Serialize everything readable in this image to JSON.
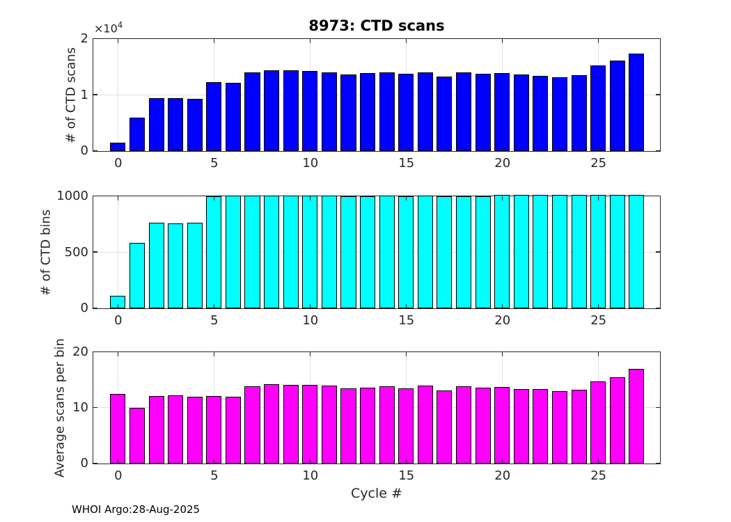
{
  "figure": {
    "title": "8973: CTD scans",
    "xlabel": "Cycle #",
    "footer": "WHOI Argo:28-Aug-2025",
    "background_color": "#ffffff",
    "axis_color": "#262626",
    "grid_color": "#e0e0e0",
    "bar_edge_color": "#000000"
  },
  "chart_data": [
    {
      "type": "bar",
      "name": "ctd-scans",
      "ylabel": "# of CTD scans",
      "y_exponent_base": "×10",
      "y_exponent_power": "4",
      "bar_color": "#0000ff",
      "x": [
        0,
        1,
        2,
        3,
        4,
        5,
        6,
        7,
        8,
        9,
        10,
        11,
        12,
        13,
        14,
        15,
        16,
        17,
        18,
        19,
        20,
        21,
        22,
        23,
        24,
        25,
        26,
        27
      ],
      "values": [
        1400,
        5900,
        9400,
        9400,
        9300,
        12300,
        12100,
        14000,
        14400,
        14300,
        14200,
        14000,
        13600,
        13800,
        14000,
        13700,
        14000,
        13200,
        14000,
        13700,
        13900,
        13600,
        13400,
        13100,
        13500,
        15200,
        16100,
        17300
      ],
      "xlim": [
        -1.3,
        28.2
      ],
      "ylim": [
        0,
        20000
      ],
      "xticks": [
        0,
        5,
        10,
        15,
        20,
        25
      ],
      "xtick_labels": [
        "0",
        "5",
        "10",
        "15",
        "20",
        "25"
      ],
      "yticks": [
        0,
        10000,
        20000
      ],
      "ytick_labels": [
        "0",
        "1",
        "2"
      ],
      "grid": true
    },
    {
      "type": "bar",
      "name": "ctd-bins",
      "ylabel": "# of CTD bins",
      "bar_color": "#00ffff",
      "x": [
        0,
        1,
        2,
        3,
        4,
        5,
        6,
        7,
        8,
        9,
        10,
        11,
        12,
        13,
        14,
        15,
        16,
        17,
        18,
        19,
        20,
        21,
        22,
        23,
        24,
        25,
        26,
        27
      ],
      "values": [
        110,
        580,
        760,
        755,
        760,
        998,
        1005,
        1002,
        1002,
        1006,
        1006,
        1002,
        1000,
        1000,
        1002,
        1000,
        1002,
        1000,
        1000,
        1000,
        1008,
        1008,
        1008,
        1008,
        1008,
        1008,
        1010,
        1010
      ],
      "xlim": [
        -1.3,
        28.2
      ],
      "ylim": [
        0,
        1000
      ],
      "xticks": [
        0,
        5,
        10,
        15,
        20,
        25
      ],
      "xtick_labels": [
        "0",
        "5",
        "10",
        "15",
        "20",
        "25"
      ],
      "yticks": [
        0,
        500,
        1000
      ],
      "ytick_labels": [
        "0",
        "500",
        "1000"
      ],
      "grid": true
    },
    {
      "type": "bar",
      "name": "avg-scans-per-bin",
      "ylabel": "Average scans per bin",
      "bar_color": "#ff00ff",
      "x": [
        0,
        1,
        2,
        3,
        4,
        5,
        6,
        7,
        8,
        9,
        10,
        11,
        12,
        13,
        14,
        15,
        16,
        17,
        18,
        19,
        20,
        21,
        22,
        23,
        24,
        25,
        26,
        27
      ],
      "values": [
        12.5,
        10.0,
        12.1,
        12.2,
        12.0,
        12.1,
        11.9,
        13.8,
        14.2,
        14.1,
        14.1,
        13.9,
        13.4,
        13.6,
        13.8,
        13.5,
        13.9,
        13.1,
        13.8,
        13.6,
        13.7,
        13.3,
        13.3,
        13.0,
        13.2,
        14.7,
        15.5,
        16.9
      ],
      "xlim": [
        -1.3,
        28.2
      ],
      "ylim": [
        0,
        20
      ],
      "xticks": [
        0,
        5,
        10,
        15,
        20,
        25
      ],
      "xtick_labels": [
        "0",
        "5",
        "10",
        "15",
        "20",
        "25"
      ],
      "yticks": [
        0,
        10,
        20
      ],
      "ytick_labels": [
        "0",
        "10",
        "20"
      ],
      "grid": true
    }
  ]
}
